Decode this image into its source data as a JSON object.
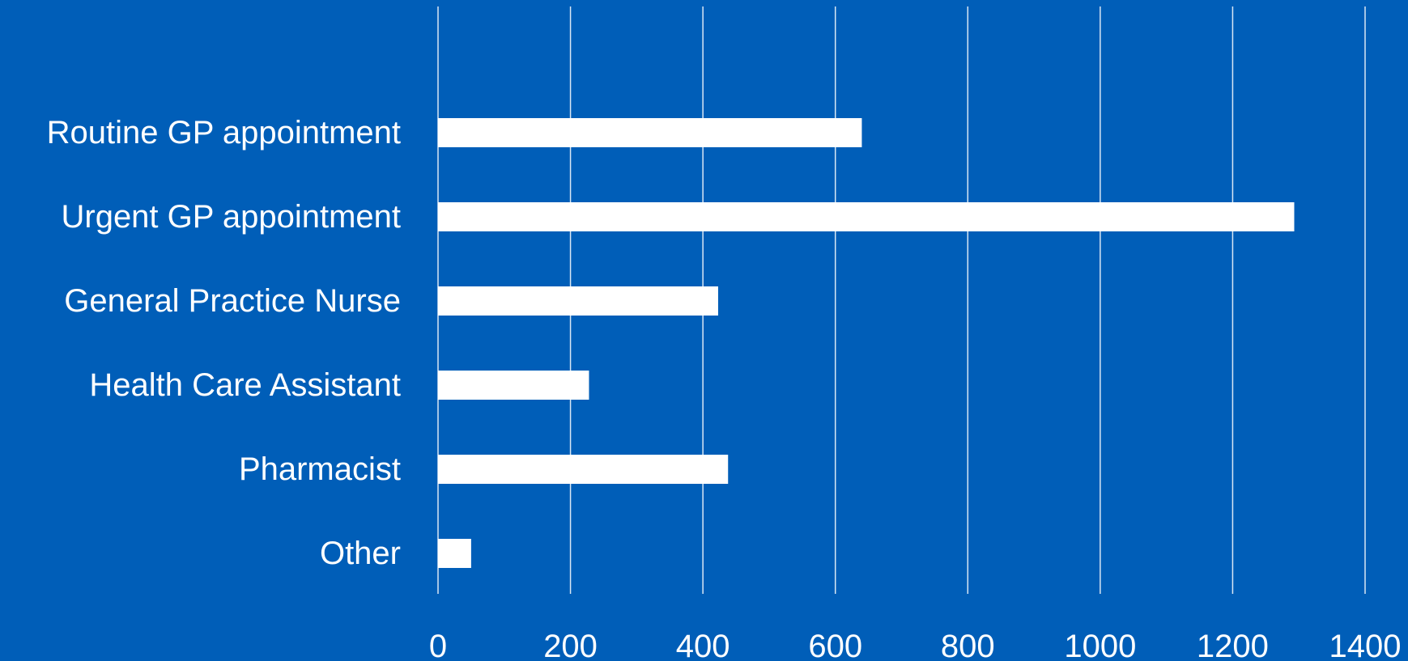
{
  "chart_data": {
    "type": "bar",
    "orientation": "horizontal",
    "title": "",
    "xlabel": "",
    "ylabel": "",
    "categories": [
      "Routine GP appointment",
      "Urgent GP appointment",
      "General Practice Nurse",
      "Health Care Assistant",
      "Pharmacist",
      "Other"
    ],
    "values": [
      640,
      1293,
      423,
      228,
      438,
      50
    ],
    "xlim": [
      0,
      1400
    ],
    "xticks": [
      0,
      200,
      400,
      600,
      800,
      1000,
      1200,
      1400
    ],
    "grid": true,
    "legend": "none",
    "colors": {
      "background": "#005EB8",
      "bar": "#FFFFFF",
      "grid": "#FFFFFF",
      "text": "#FFFFFF"
    }
  }
}
